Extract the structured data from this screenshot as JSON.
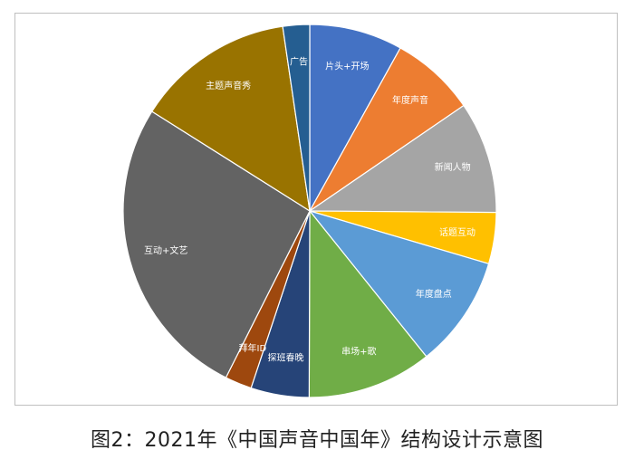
{
  "caption": "图2：2021年《中国声音中国年》结构设计示意图",
  "chart_data": {
    "type": "pie",
    "title": "",
    "legend": "none",
    "data_labels": "inside",
    "start": "top",
    "direction": "clockwise",
    "slices": [
      {
        "label": "片头+开场",
        "value": 8.0,
        "color": "#4472C4"
      },
      {
        "label": "年度声音",
        "value": 7.3,
        "color": "#ED7D31"
      },
      {
        "label": "新闻人物",
        "value": 9.6,
        "color": "#A5A5A5"
      },
      {
        "label": "话题互动",
        "value": 4.4,
        "color": "#FFC000"
      },
      {
        "label": "年度盘点",
        "value": 9.6,
        "color": "#5B9BD5"
      },
      {
        "label": "串场+歌",
        "value": 10.7,
        "color": "#70AD47"
      },
      {
        "label": "探班春晚",
        "value": 5.0,
        "color": "#264478"
      },
      {
        "label": "拜年ID",
        "value": 2.3,
        "color": "#9E480E"
      },
      {
        "label": "互动+文艺",
        "value": 26.3,
        "color": "#636363"
      },
      {
        "label": "主题声音秀",
        "value": 13.6,
        "color": "#997300"
      },
      {
        "label": "广告",
        "value": 2.3,
        "color": "#255E91"
      }
    ]
  }
}
